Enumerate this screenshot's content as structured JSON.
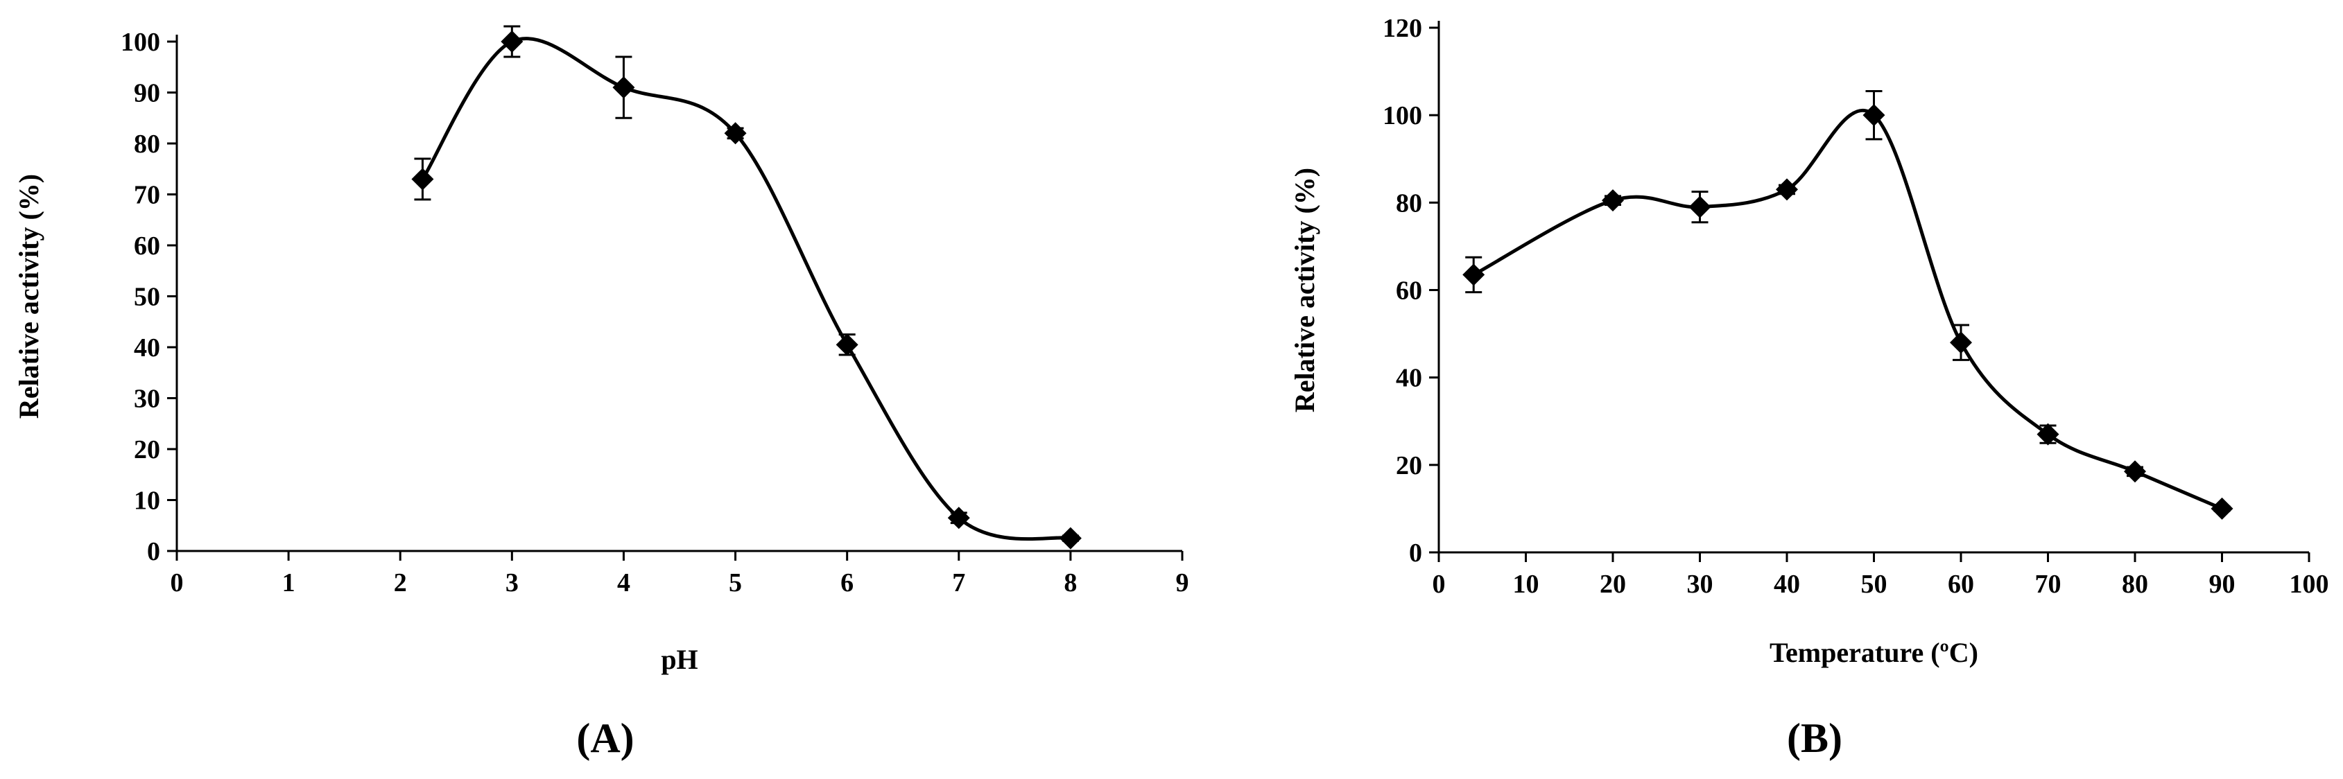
{
  "chart_data": [
    {
      "type": "line",
      "panel_label": "(A)",
      "xlabel": "pH",
      "ylabel": "Relative activity (%)",
      "xlim": [
        0,
        9
      ],
      "ylim": [
        0,
        100
      ],
      "xticks": [
        0,
        1,
        2,
        3,
        4,
        5,
        6,
        7,
        8,
        9
      ],
      "yticks": [
        0,
        10,
        20,
        30,
        40,
        50,
        60,
        70,
        80,
        90,
        100
      ],
      "grid": false,
      "marker": "diamond",
      "series": [
        {
          "name": "pH",
          "x": [
            2.2,
            3,
            4,
            5,
            6,
            7,
            8
          ],
          "y": [
            73,
            100,
            91,
            82,
            40.5,
            6.5,
            2.5
          ],
          "err": [
            4,
            3,
            6,
            1,
            2,
            1,
            0.5
          ]
        }
      ]
    },
    {
      "type": "line",
      "panel_label": "(B)",
      "xlabel": "Temperature (ºC)",
      "ylabel": "Relative activity (%)",
      "xlim": [
        0,
        100
      ],
      "ylim": [
        0,
        120
      ],
      "xticks": [
        0,
        10,
        20,
        30,
        40,
        50,
        60,
        70,
        80,
        90,
        100
      ],
      "yticks": [
        0,
        20,
        40,
        60,
        80,
        100,
        120
      ],
      "grid": false,
      "marker": "diamond",
      "series": [
        {
          "name": "Temperature",
          "x": [
            4,
            20,
            30,
            40,
            50,
            60,
            70,
            80,
            90
          ],
          "y": [
            63.5,
            80.5,
            79,
            83,
            100,
            48,
            27,
            18.5,
            10
          ],
          "err": [
            4,
            1,
            3.5,
            1,
            5.5,
            4,
            2,
            1,
            0.5
          ]
        }
      ]
    }
  ]
}
